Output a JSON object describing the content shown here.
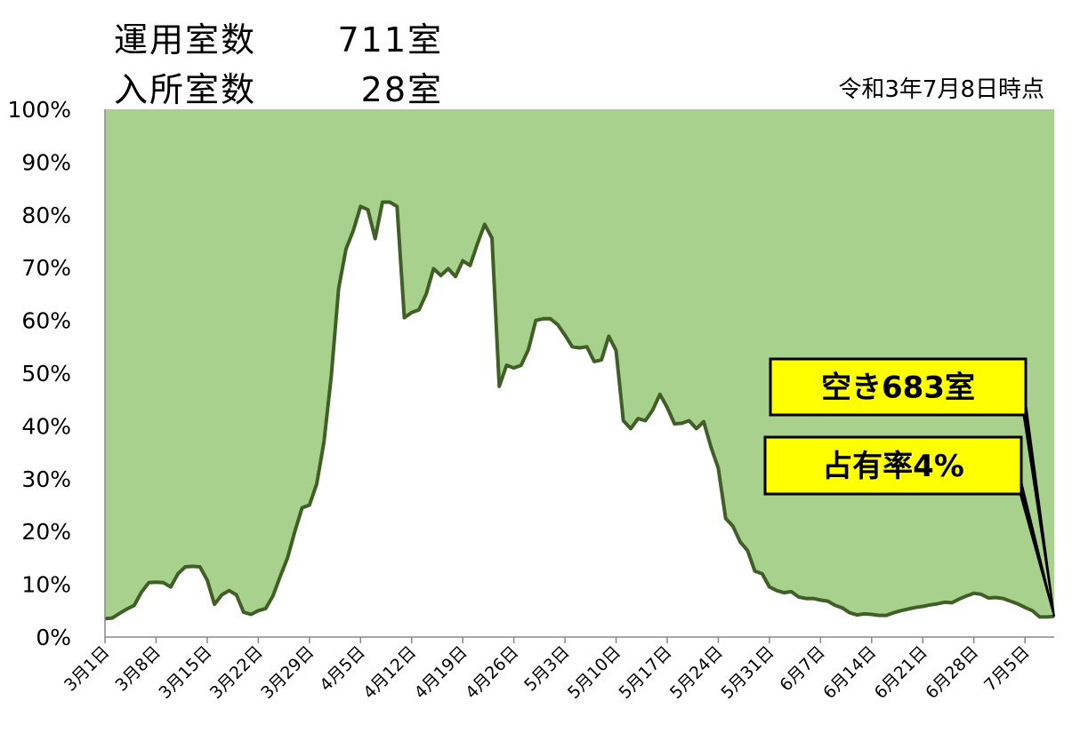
{
  "header": {
    "operating_label": "運用室数",
    "operating_value": "711室",
    "occupied_label": "入所室数",
    "occupied_value": "28室",
    "as_of": "令和3年7月8日時点"
  },
  "callouts": {
    "vacant": "空き683室",
    "occupancy": "占有率4%"
  },
  "colors": {
    "plot_background": "#a9d18e",
    "area_fill": "#ffffff",
    "line": "#3f5f27",
    "callout_fill": "#ffff00"
  },
  "chart_data": {
    "type": "area",
    "ylim": [
      0,
      100
    ],
    "y_tick_labels": [
      "0%",
      "10%",
      "20%",
      "30%",
      "40%",
      "50%",
      "60%",
      "70%",
      "80%",
      "90%",
      "100%"
    ],
    "x_tick_labels": [
      "3月1日",
      "3月8日",
      "3月15日",
      "3月22日",
      "3月29日",
      "4月5日",
      "4月12日",
      "4月19日",
      "4月26日",
      "5月3日",
      "5月10日",
      "5月17日",
      "5月24日",
      "5月31日",
      "6月7日",
      "6月14日",
      "6月21日",
      "6月28日",
      "7月5日"
    ],
    "series": [
      {
        "values": [
          3.5,
          3.6,
          4.5,
          5.3,
          6,
          8.5,
          10.3,
          10.4,
          10.3,
          9.5,
          12,
          13.3,
          13.4,
          13.3,
          10.8,
          6.2,
          8,
          8.8,
          8,
          4.7,
          4.3,
          5,
          5.4,
          7.8,
          11.5,
          15,
          20,
          24.5,
          25,
          29,
          37,
          49.5,
          66,
          73.5,
          77,
          81.6,
          81,
          75.5,
          82.4,
          82.4,
          81.6,
          60.5,
          61.5,
          62,
          65,
          69.8,
          68.5,
          69.8,
          68.3,
          71.3,
          70.4,
          74.5,
          78.2,
          75.6,
          47.5,
          51.5,
          51,
          51.5,
          54.5,
          60,
          60.3,
          60.3,
          59.2,
          57.2,
          55,
          54.8,
          55,
          52.2,
          52.5,
          57,
          54.3,
          41,
          39.5,
          41.4,
          41,
          43,
          46,
          43.5,
          40.4,
          40.5,
          41,
          39.5,
          40.8,
          36,
          32,
          22.5,
          21,
          18,
          16.4,
          12.5,
          12,
          9.5,
          8.8,
          8.4,
          8.6,
          7.6,
          7.3,
          7.3,
          7,
          6.8,
          6,
          5.5,
          4.6,
          4.2,
          4.4,
          4.3,
          4.1,
          4.1,
          4.6,
          5,
          5.3,
          5.6,
          5.8,
          6.1,
          6.3,
          6.6,
          6.5,
          7.2,
          7.8,
          8.3,
          8.1,
          7.4,
          7.5,
          7.3,
          6.8,
          6.3,
          5.6,
          5,
          3.8,
          3.8,
          3.9
        ]
      }
    ]
  }
}
